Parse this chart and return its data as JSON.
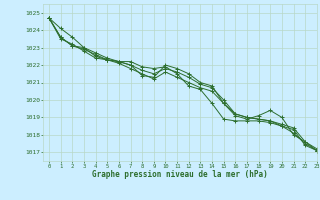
{
  "bg_color": "#cceeff",
  "grid_color": "#b8d8c8",
  "line_color": "#2d6e2d",
  "marker_color": "#2d6e2d",
  "xlabel": "Graphe pression niveau de la mer (hPa)",
  "xlabel_color": "#2d6e2d",
  "xlim": [
    -0.5,
    23
  ],
  "ylim": [
    1016.5,
    1025.5
  ],
  "yticks": [
    1017,
    1018,
    1019,
    1020,
    1021,
    1022,
    1023,
    1024,
    1025
  ],
  "xticks": [
    0,
    1,
    2,
    3,
    4,
    5,
    6,
    7,
    8,
    9,
    10,
    11,
    12,
    13,
    14,
    15,
    16,
    17,
    18,
    19,
    20,
    21,
    22,
    23
  ],
  "series": [
    [
      1024.7,
      1024.1,
      1023.6,
      1023.0,
      1022.7,
      1022.4,
      1022.2,
      1022.2,
      1021.9,
      1021.8,
      1021.9,
      1021.5,
      1020.8,
      1020.6,
      1019.8,
      1018.9,
      1018.8,
      1018.8,
      1018.8,
      1018.7,
      1018.5,
      1018.1,
      1017.5,
      1017.1
    ],
    [
      1024.7,
      1023.6,
      1023.1,
      1023.0,
      1022.5,
      1022.3,
      1022.2,
      1022.0,
      1021.4,
      1021.3,
      1022.0,
      1021.8,
      1021.5,
      1021.0,
      1020.8,
      1019.8,
      1019.1,
      1018.9,
      1019.1,
      1019.4,
      1019.0,
      1018.0,
      1017.6,
      1017.2
    ],
    [
      1024.7,
      1023.5,
      1023.2,
      1022.8,
      1022.4,
      1022.3,
      1022.2,
      1022.0,
      1021.7,
      1021.5,
      1021.8,
      1021.6,
      1021.3,
      1020.9,
      1020.7,
      1020.0,
      1019.2,
      1019.0,
      1018.9,
      1018.8,
      1018.5,
      1018.3,
      1017.4,
      1017.1
    ],
    [
      1024.7,
      1023.6,
      1023.1,
      1022.9,
      1022.6,
      1022.3,
      1022.1,
      1021.8,
      1021.5,
      1021.2,
      1021.6,
      1021.3,
      1021.0,
      1020.7,
      1020.5,
      1019.8,
      1019.2,
      1019.0,
      1018.9,
      1018.8,
      1018.6,
      1018.4,
      1017.6,
      1017.1
    ]
  ]
}
